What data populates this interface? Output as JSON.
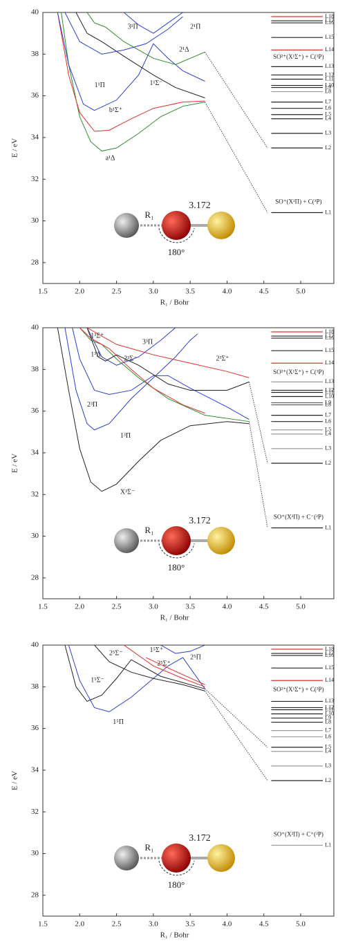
{
  "chart_data": [
    {
      "type": "line",
      "ylabel": "E / eV",
      "xlabel": "R₁ / Bohr",
      "xlim": [
        1.5,
        5.45
      ],
      "ylim": [
        27,
        40
      ],
      "xticks": [
        1.5,
        {
          "value": 2,
          "label": "2.0"
        },
        2.5,
        {
          "value": 3,
          "label": "3.0"
        },
        3.5,
        {
          "value": 4,
          "label": "4.0"
        },
        4.5,
        {
          "value": 5,
          "label": "5.0"
        }
      ],
      "yticks": [
        28,
        30,
        32,
        34,
        36,
        38,
        40
      ],
      "series": [
        {
          "name": "a¹Δ",
          "color": "#2e8b2e",
          "x": [
            1.75,
            1.85,
            2.0,
            2.15,
            2.3,
            2.5,
            2.8,
            3.1,
            3.4,
            3.7
          ],
          "values": [
            40,
            37.5,
            35,
            33.8,
            33.35,
            33.5,
            34.2,
            35,
            35.5,
            35.7
          ]
        },
        {
          "name": "b¹Σ⁺",
          "color": "#e0302a",
          "x": [
            1.7,
            1.85,
            2.0,
            2.2,
            2.4,
            2.7,
            3.0,
            3.4,
            3.7
          ],
          "values": [
            40,
            37,
            35.2,
            34.3,
            34.35,
            34.9,
            35.4,
            35.7,
            35.75
          ]
        },
        {
          "name": "1¹Π",
          "color": "#2b3fd0",
          "x": [
            1.7,
            1.85,
            2.05,
            2.2,
            2.5,
            2.8,
            3.0,
            3.2,
            3.4,
            3.7
          ],
          "values": [
            40,
            37.5,
            35.6,
            35.3,
            35.8,
            37,
            38.5,
            37.8,
            37.2,
            36.7
          ]
        },
        {
          "name": "1¹Σ⁻",
          "color": "#222222",
          "x": [
            1.95,
            2.1,
            2.3,
            2.6,
            3.0,
            3.3,
            3.7
          ],
          "values": [
            40,
            39,
            38.6,
            37.9,
            37,
            36.4,
            35.9
          ]
        },
        {
          "name": "2¹Δ",
          "color": "#2e8b2e",
          "x": [
            2.1,
            2.2,
            2.35,
            2.6,
            3.0,
            3.3,
            3.7
          ],
          "values": [
            40,
            39.5,
            39.3,
            38.6,
            37.8,
            37.5,
            38.1
          ]
        },
        {
          "name": "3¹Π",
          "color": "#2b3fd0",
          "x": [
            1.8,
            2.0,
            2.3,
            2.6,
            2.9,
            3.2,
            3.4
          ],
          "values": [
            40,
            38.6,
            38,
            38.2,
            38.5,
            39.2,
            39.8
          ]
        },
        {
          "name": "2¹Π",
          "color": "#2b3fd0",
          "x": [
            2.6,
            2.8,
            3.0,
            3.2,
            3.4
          ],
          "values": [
            40,
            39.4,
            39,
            39.5,
            40
          ]
        },
        {
          "color": "#444444",
          "dash": true,
          "x": [
            3.7,
            4.55
          ],
          "values": [
            38.1,
            33.5
          ]
        },
        {
          "color": "#444444",
          "dash": true,
          "x": [
            3.7,
            4.55
          ],
          "values": [
            35.7,
            30.4
          ]
        }
      ],
      "levels": [
        {
          "label": "L1",
          "value": 30.4,
          "color": "#222222"
        },
        {
          "label": "L2",
          "value": 33.5,
          "color": "#222222"
        },
        {
          "label": "L3",
          "value": 34.2,
          "color": "#222222"
        },
        {
          "label": "L4",
          "value": 34.9,
          "color": "#222222"
        },
        {
          "label": "L5",
          "value": 35.1,
          "color": "#222222"
        },
        {
          "label": "L6",
          "value": 35.4,
          "color": "#222222"
        },
        {
          "label": "L7",
          "value": 35.7,
          "color": "#222222"
        },
        {
          "label": "L8",
          "value": 36.2,
          "color": "#999999"
        },
        {
          "label": "L9",
          "value": 36.4,
          "color": "#222222"
        },
        {
          "label": "L10",
          "value": 36.5,
          "color": "#222222"
        },
        {
          "label": "L11",
          "value": 36.8,
          "color": "#222222"
        },
        {
          "label": "L12",
          "value": 37.0,
          "color": "#222222"
        },
        {
          "label": "L13",
          "value": 37.4,
          "color": "#222222"
        },
        {
          "label": "L14",
          "value": 38.2,
          "color": "#e0302a"
        },
        {
          "label": "L15",
          "value": 38.8,
          "color": "#222222"
        },
        {
          "label": "L16",
          "value": 39.5,
          "color": "#222222"
        },
        {
          "label": "L17",
          "value": 39.6,
          "color": "#222222"
        },
        {
          "label": "L18",
          "value": 39.8,
          "color": "#e0302a"
        }
      ],
      "asymptotes": [
        {
          "label": "SO²⁺(X¹Σ⁺) + C(³P)",
          "color": "#e0302a"
        },
        {
          "label": "SO⁺(X²Π) + C(³P)",
          "color": "#222222"
        }
      ],
      "molecule": {
        "bond": "R₁",
        "distance": "3.172",
        "angle": "180°"
      }
    },
    {
      "type": "line",
      "ylabel": "E / eV",
      "xlabel": "R₁ / Bohr",
      "xlim": [
        1.5,
        5.45
      ],
      "ylim": [
        27,
        40
      ],
      "xticks": [
        1.5,
        {
          "value": 2,
          "label": "2.0"
        },
        2.5,
        {
          "value": 3,
          "label": "3.0"
        },
        3.5,
        {
          "value": 4,
          "label": "4.0"
        },
        4.5,
        {
          "value": 5,
          "label": "5.0"
        }
      ],
      "yticks": [
        28,
        30,
        32,
        34,
        36,
        38,
        40
      ],
      "series": [
        {
          "name": "X³Σ⁻",
          "color": "#222222",
          "x": [
            1.7,
            1.85,
            2.0,
            2.15,
            2.3,
            2.5,
            2.8,
            3.1,
            3.5,
            4.0,
            4.3
          ],
          "values": [
            40,
            37,
            34.2,
            32.6,
            32.15,
            32.5,
            33.6,
            34.6,
            35.3,
            35.5,
            35.4
          ]
        },
        {
          "name": "1³Π",
          "color": "#2b3fd0",
          "x": [
            1.8,
            1.95,
            2.1,
            2.2,
            2.4,
            2.7,
            3.0,
            3.3,
            3.5,
            3.6
          ],
          "values": [
            40,
            37,
            35.4,
            35.1,
            35.4,
            36.6,
            37.6,
            38.6,
            39.4,
            39.7
          ]
        },
        {
          "name": "2³Π",
          "color": "#2b3fd0",
          "x": [
            1.9,
            2.0,
            2.2,
            2.4,
            2.7,
            3.0,
            3.2,
            3.5,
            4.0,
            4.3
          ],
          "values": [
            40,
            38.5,
            37,
            36.8,
            37,
            37.7,
            37.7,
            37.1,
            36.2,
            35.6
          ]
        },
        {
          "name": "3³Π",
          "color": "#2b3fd0",
          "x": [
            2.1,
            2.3,
            2.5,
            2.8,
            3.1,
            3.3
          ],
          "values": [
            40,
            38.6,
            38.2,
            38.6,
            39.4,
            40
          ]
        },
        {
          "name": "1³Δ",
          "color": "#2e8b2e",
          "x": [
            2.0,
            2.15,
            2.3,
            2.5,
            2.8,
            3.2,
            3.7,
            4.3
          ],
          "values": [
            40,
            39.4,
            39.2,
            38.5,
            37.6,
            36.6,
            35.8,
            35.5
          ]
        },
        {
          "name": "1³Σ⁺",
          "color": "#e0302a",
          "x": [
            2.0,
            2.15,
            2.4,
            2.7,
            3.0,
            3.4,
            3.7
          ],
          "values": [
            40,
            39.5,
            39,
            38,
            37.1,
            36.3,
            35.9
          ]
        },
        {
          "name": "2³Σ⁻",
          "color": "#222222",
          "x": [
            2.1,
            2.25,
            2.35,
            2.5,
            2.8,
            3.2,
            3.5,
            4.0,
            4.3
          ],
          "values": [
            40,
            38.6,
            38.4,
            38.7,
            38.2,
            37.3,
            37,
            37,
            37.4
          ]
        },
        {
          "name": "2³Σ⁺",
          "color": "#e0302a",
          "x": [
            2.1,
            2.5,
            3.0,
            3.5,
            4.0,
            4.3
          ],
          "values": [
            40,
            39.2,
            38.7,
            38.3,
            37.9,
            37.6
          ]
        },
        {
          "color": "#444444",
          "dash": true,
          "x": [
            4.3,
            4.55
          ],
          "values": [
            37.4,
            33.5
          ]
        },
        {
          "color": "#444444",
          "dash": true,
          "x": [
            4.3,
            4.55
          ],
          "values": [
            35.5,
            30.4
          ]
        }
      ],
      "levels": [
        {
          "label": "L1",
          "value": 30.4,
          "color": "#222222"
        },
        {
          "label": "L2",
          "value": 33.5,
          "color": "#222222"
        },
        {
          "label": "L3",
          "value": 34.2,
          "color": "#999999"
        },
        {
          "label": "L4",
          "value": 34.9,
          "color": "#999999"
        },
        {
          "label": "L5",
          "value": 35.1,
          "color": "#999999"
        },
        {
          "label": "L6",
          "value": 35.5,
          "color": "#222222"
        },
        {
          "label": "L7",
          "value": 35.8,
          "color": "#222222"
        },
        {
          "label": "L8",
          "value": 36.3,
          "color": "#555555"
        },
        {
          "label": "L9",
          "value": 36.4,
          "color": "#555555"
        },
        {
          "label": "L10",
          "value": 36.7,
          "color": "#222222"
        },
        {
          "label": "L11",
          "value": 36.9,
          "color": "#222222"
        },
        {
          "label": "L12",
          "value": 37.0,
          "color": "#222222"
        },
        {
          "label": "L13",
          "value": 37.4,
          "color": "#999999"
        },
        {
          "label": "L14",
          "value": 38.3,
          "color": "#e0302a"
        },
        {
          "label": "L15",
          "value": 38.9,
          "color": "#222222"
        },
        {
          "label": "L16",
          "value": 39.5,
          "color": "#222222"
        },
        {
          "label": "L17",
          "value": 39.6,
          "color": "#222222"
        },
        {
          "label": "L18",
          "value": 39.8,
          "color": "#e0302a"
        }
      ],
      "asymptotes": [
        {
          "label": "SO²⁺(X¹Σ⁺) + C(³P)",
          "color": "#e0302a"
        },
        {
          "label": "SO⁺(X²Π) + C⁻(²P)",
          "color": "#222222"
        }
      ],
      "molecule": {
        "bond": "R₁",
        "distance": "3.172",
        "angle": "180°"
      }
    },
    {
      "type": "line",
      "ylabel": "E / eV",
      "xlabel": "R₁ / Bohr",
      "xlim": [
        1.5,
        5.45
      ],
      "ylim": [
        27,
        40
      ],
      "xticks": [
        1.5,
        {
          "value": 2,
          "label": "2.0"
        },
        2.5,
        {
          "value": 3,
          "label": "3.0"
        },
        3.5,
        {
          "value": 4,
          "label": "4.0"
        },
        4.5,
        {
          "value": 5,
          "label": "5.0"
        }
      ],
      "yticks": [
        28,
        30,
        32,
        34,
        36,
        38,
        40
      ],
      "series": [
        {
          "name": "1⁵Σ⁻",
          "color": "#222222",
          "x": [
            1.8,
            1.95,
            2.1,
            2.3,
            2.5,
            2.7,
            2.8,
            3.1,
            3.4,
            3.7
          ],
          "values": [
            40,
            38,
            37.3,
            37.6,
            38.4,
            39.3,
            39.1,
            38.5,
            38.2,
            37.9
          ]
        },
        {
          "name": "1⁵Π",
          "color": "#2b3fd0",
          "x": [
            1.85,
            2.0,
            2.2,
            2.4,
            2.7,
            3.0,
            3.2,
            3.4,
            3.7
          ],
          "values": [
            40,
            38.3,
            37,
            36.8,
            37.5,
            38.4,
            39,
            39.4,
            37.9
          ]
        },
        {
          "name": "2⁵Σ⁻",
          "color": "#222222",
          "x": [
            2.2,
            2.4,
            2.7,
            3.0,
            3.4,
            3.7
          ],
          "values": [
            40,
            39.2,
            38.7,
            38.4,
            38.1,
            37.8
          ]
        },
        {
          "name": "2⁵Π",
          "color": "#2b3fd0",
          "x": [
            3.1,
            3.3,
            3.5,
            3.7
          ],
          "values": [
            40,
            39.6,
            39.7,
            40
          ]
        },
        {
          "name": "1⁵Σ⁺",
          "color": "#e0302a",
          "x": [
            2.6,
            3.0,
            3.4,
            3.7
          ],
          "values": [
            40,
            39,
            38.4,
            38
          ]
        },
        {
          "name": "2⁵Σ⁺",
          "color": "#e0302a",
          "x": [
            2.9,
            3.2,
            3.7
          ],
          "values": [
            39.4,
            38.9,
            38.1
          ]
        },
        {
          "color": "#444444",
          "dash": true,
          "x": [
            3.7,
            4.55
          ],
          "values": [
            37.9,
            35.1
          ]
        },
        {
          "color": "#444444",
          "dash": true,
          "x": [
            3.7,
            4.55
          ],
          "values": [
            37.8,
            33.5
          ]
        }
      ],
      "levels": [
        {
          "label": "L1",
          "value": 30.4,
          "color": "#999999"
        },
        {
          "label": "L2",
          "value": 33.5,
          "color": "#222222"
        },
        {
          "label": "L3",
          "value": 34.2,
          "color": "#999999"
        },
        {
          "label": "L4",
          "value": 34.9,
          "color": "#999999"
        },
        {
          "label": "L5",
          "value": 35.1,
          "color": "#222222"
        },
        {
          "label": "L6",
          "value": 35.6,
          "color": "#999999"
        },
        {
          "label": "L7",
          "value": 35.9,
          "color": "#999999"
        },
        {
          "label": "L8",
          "value": 36.3,
          "color": "#222222"
        },
        {
          "label": "L9",
          "value": 36.5,
          "color": "#222222"
        },
        {
          "label": "L10",
          "value": 36.7,
          "color": "#222222"
        },
        {
          "label": "L11",
          "value": 36.9,
          "color": "#222222"
        },
        {
          "label": "L12",
          "value": 37.0,
          "color": "#222222"
        },
        {
          "label": "L13",
          "value": 37.3,
          "color": "#222222"
        },
        {
          "label": "L14",
          "value": 38.3,
          "color": "#e0302a"
        },
        {
          "label": "L15",
          "value": 38.9,
          "color": "#222222"
        },
        {
          "label": "L16",
          "value": 39.5,
          "color": "#222222"
        },
        {
          "label": "L17",
          "value": 39.6,
          "color": "#222222"
        },
        {
          "label": "L18",
          "value": 39.8,
          "color": "#e0302a"
        }
      ],
      "asymptotes": [
        {
          "label": "SO²⁺(X¹Σ⁺) + C(³P)",
          "color": "#e0302a"
        },
        {
          "label": "SO⁺(X²Π) + C⁺(²P)",
          "color": "#222222"
        }
      ],
      "molecule": {
        "bond": "R₁",
        "distance": "3.172",
        "angle": "180°"
      }
    }
  ]
}
